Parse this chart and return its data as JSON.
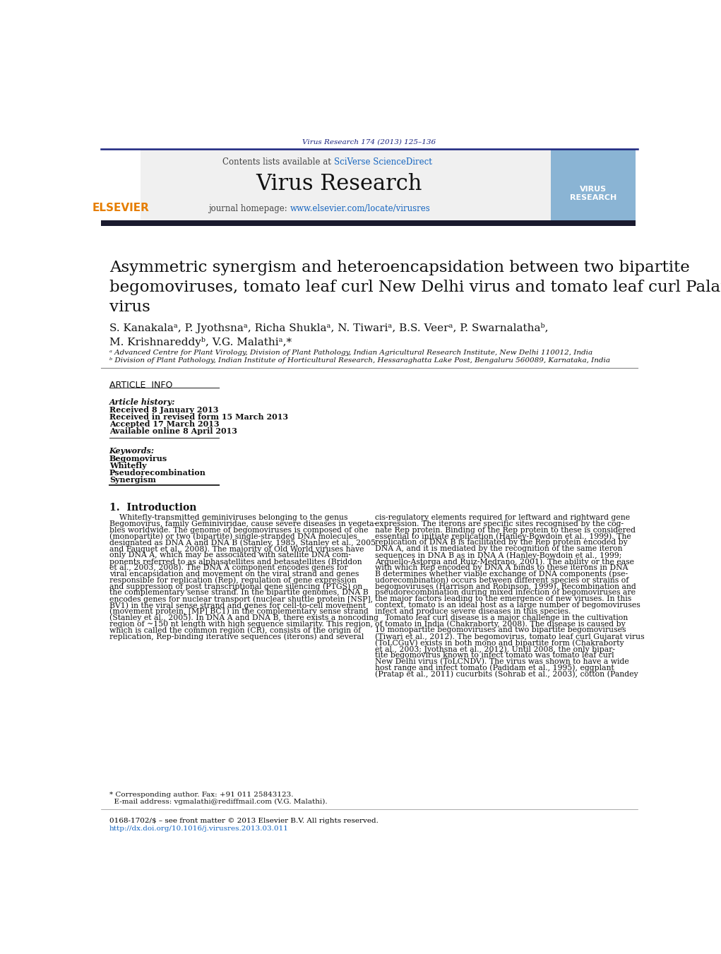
{
  "page_bg": "#ffffff",
  "top_journal_ref": "Virus Research 174 (2013) 125–136",
  "top_journal_ref_color": "#1a237e",
  "header_bg": "#f0f0f0",
  "header_line_color": "#1a237e",
  "contents_text": "Contents lists available at ",
  "sciverse_text": "SciVerse ScienceDirect",
  "sciverse_color": "#1565c0",
  "journal_name": "Virus Research",
  "journal_homepage_text": "journal homepage: ",
  "journal_url": "www.elsevier.com/locate/virusres",
  "journal_url_color": "#1565c0",
  "dark_bar_color": "#1a1a2e",
  "title": "Asymmetric synergism and heteroencapsidation between two bipartite\nbegomoviruses, tomato leaf curl New Delhi virus and tomato leaf curl Palampur\nvirus",
  "title_fontsize": 16.5,
  "authors": "S. Kanakalaᵃ, P. Jyothsnaᵃ, Richa Shuklaᵃ, N. Tiwariᵃ, B.S. Veerᵃ, P. Swarnalathaᵇ,\nM. Krishnareddyᵇ, V.G. Malathiᵃ,*",
  "affil_a": "ᵃ Advanced Centre for Plant Virology, Division of Plant Pathology, Indian Agricultural Research Institute, New Delhi 110012, India",
  "affil_b": "ᵇ Division of Plant Pathology, Indian Institute of Horticultural Research, Hessaraghatta Lake Post, Bengaluru 560089, Karnataka, India",
  "article_info_title": "ARTICLE  INFO",
  "article_history_label": "Article history:",
  "received1": "Received 8 January 2013",
  "received2": "Received in revised form 15 March 2013",
  "accepted": "Accepted 17 March 2013",
  "available": "Available online 8 April 2013",
  "keywords_label": "Keywords:",
  "keywords": [
    "Begomovirus",
    "Whitefly",
    "Pseudorecombination",
    "Synergism"
  ],
  "section1_title": "1.  Introduction",
  "intro_text_left": "    Whitefly-transmitted geminiviruses belonging to the genus\nBegomovirus, family Geminiviridae, cause severe diseases in vegeta-\nbles worldwide. The genome of begomoviruses is composed of one\n(monopartite) or two (bipartite) single-stranded DNA molecules\ndesignated as DNA A and DNA B (Stanley, 1985, Stanley et al., 2005\nand Fauquet et al., 2008). The majority of Old World viruses have\nonly DNA A, which may be associated with satellite DNA com-\nponents referred to as alphasatellites and betasatellites (Briddon\net al., 2003, 2008). The DNA A component encodes genes for\nviral encapsidation and movement on the viral strand and genes\nresponsible for replication (Rep), regulation of gene expression\nand suppression of post transcriptional gene silencing (PTGS) on\nthe complementary sense strand. In the bipartite genomes, DNA B\nencodes genes for nuclear transport (nuclear shuttle protein [NSP],\nBV1) in the viral sense strand and genes for cell-to-cell movement\n(movement protein, [MP] BC1) in the complementary sense strand\n(Stanley et al., 2005). In DNA A and DNA B, there exists a noncoding\nregion of ~150 nt length with high sequence similarity. This region,\nwhich is called the common region (CR), consists of the origin of\nreplication, Rep-binding iterative sequences (iterons) and several",
  "intro_text_right": "cis-regulatory elements required for leftward and rightward gene\nexpression. The iterons are specific sites recognised by the cog-\nnate Rep protein. Binding of the Rep protein to these is considered\nessential to initiate replication (Hanley-Bowdoin et al., 1999). The\nreplication of DNA B is facilitated by the Rep protein encoded by\nDNA A, and it is mediated by the recognition of the same iteron\nsequences in DNA B as in DNA A (Hanley-Bowdoin et al., 1999;\nArguello-Astorga and Ruiz-Medrano, 2001). The ability or the ease\nwith which Rep encoded by DNA A binds to these iterons in DNA\nB determines whether viable exchange of DNA components (pse-\nudorecombination) occurs between different species or strains of\nbegomoviruses (Harrison and Robinson, 1999). Recombination and\npseudorecombination during mixed infection of begomoviruses are\nthe major factors leading to the emergence of new viruses. In this\ncontext, tomato is an ideal host as a large number of begomoviruses\ninfect and produce severe diseases in this species.\n    Tomato leaf curl disease is a major challenge in the cultivation\nof tomato in India (Chakraborty, 2008). The disease is caused by\n10 monopartite begomoviruses and two bipartite begomoviruses\n(Tiwari et al., 2012). The begomovirus, tomato leaf curl Gujarat virus\n(ToLCGuV) exists in both mono and bipartite form (Chakraborty\net al., 2003; Jyothsna et al., 2012). Until 2008, the only bipar-\ntite begomovirus known to infect tomato was tomato leaf curl\nNew Delhi virus (ToLCNDV). The virus was shown to have a wide\nhost range and infect tomato (Padidam et al., 1995), eggplant\n(Pratap et al., 2011) cucurbits (Sohrab et al., 2003), cotton (Pandey",
  "footer_line1": "0168-1702/$ – see front matter © 2013 Elsevier B.V. All rights reserved.",
  "footer_line2": "http://dx.doi.org/10.1016/j.virusres.2013.03.011",
  "footer_color": "#000000",
  "footnote_text": "* Corresponding author. Fax: +91 011 25843123.\n  E-mail address: vgmalathi@rediffmail.com (V.G. Malathi).",
  "link_color": "#1565c0",
  "elsevier_color": "#e67e00"
}
